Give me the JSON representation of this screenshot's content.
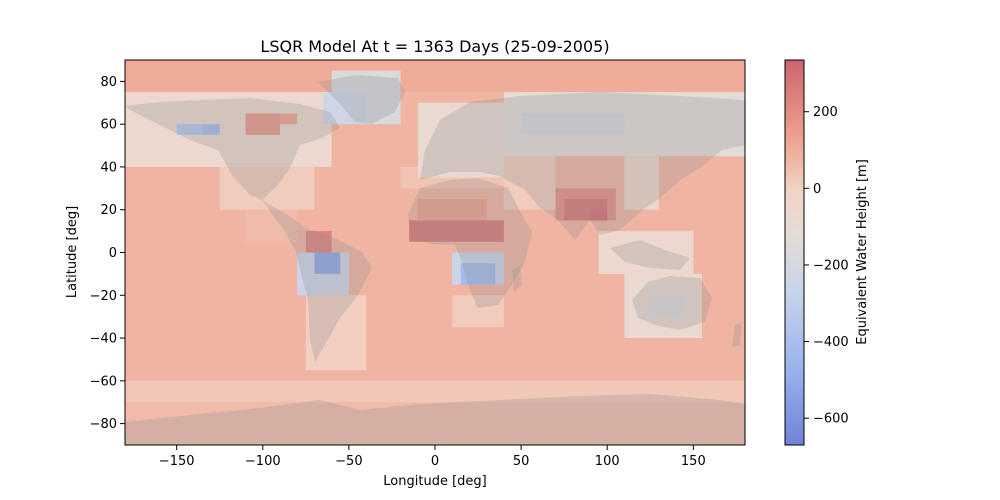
{
  "chart_data": {
    "type": "heatmap",
    "title": "LSQR Model At t = 1363 Days (25-09-2005)",
    "xlabel": "Longitude [deg]",
    "ylabel": "Latitude [deg]",
    "xlim": [
      -180,
      180
    ],
    "ylim": [
      -90,
      90
    ],
    "x_ticks": [
      -150,
      -100,
      -50,
      0,
      50,
      100,
      150
    ],
    "y_ticks": [
      -80,
      -60,
      -40,
      -20,
      0,
      20,
      40,
      60,
      80
    ],
    "x_tick_labels": [
      "−150",
      "−100",
      "−50",
      "0",
      "50",
      "100",
      "150"
    ],
    "y_tick_labels": [
      "−80",
      "−60",
      "−40",
      "−20",
      "0",
      "20",
      "40",
      "60",
      "80"
    ],
    "grid": false,
    "colormap": "coolwarm",
    "colorbar": {
      "label": "Equivalent Water Height [m]",
      "range": [
        -670,
        335
      ],
      "ticks": [
        200,
        0,
        -200,
        -400,
        -600
      ],
      "tick_labels": [
        "200",
        "0",
        "−200",
        "−400",
        "−600"
      ]
    },
    "background_value": 80,
    "cell_size_deg": 5,
    "cells": [
      {
        "lon": [
          -180,
          180
        ],
        "lat": [
          75,
          90
        ],
        "value": 100
      },
      {
        "lon": [
          -180,
          180
        ],
        "lat": [
          -90,
          -70
        ],
        "value": 60
      },
      {
        "lon": [
          -180,
          180
        ],
        "lat": [
          -70,
          -60
        ],
        "value": 30
      },
      {
        "lon": [
          -180,
          -60
        ],
        "lat": [
          40,
          75
        ],
        "value": -60
      },
      {
        "lon": [
          -145,
          -125
        ],
        "lat": [
          55,
          60
        ],
        "value": -420
      },
      {
        "lon": [
          -150,
          -135
        ],
        "lat": [
          55,
          60
        ],
        "value": -350
      },
      {
        "lon": [
          -110,
          -90
        ],
        "lat": [
          55,
          65
        ],
        "value": 160
      },
      {
        "lon": [
          -90,
          -80
        ],
        "lat": [
          60,
          65
        ],
        "value": 120
      },
      {
        "lon": [
          -60,
          -20
        ],
        "lat": [
          60,
          85
        ],
        "value": -180
      },
      {
        "lon": [
          -65,
          -40
        ],
        "lat": [
          60,
          75
        ],
        "value": -240
      },
      {
        "lon": [
          -125,
          -70
        ],
        "lat": [
          20,
          40
        ],
        "value": 20
      },
      {
        "lon": [
          -110,
          -80
        ],
        "lat": [
          5,
          20
        ],
        "value": 60
      },
      {
        "lon": [
          -75,
          -60
        ],
        "lat": [
          0,
          10
        ],
        "value": 230
      },
      {
        "lon": [
          -80,
          -50
        ],
        "lat": [
          -20,
          0
        ],
        "value": -250
      },
      {
        "lon": [
          -70,
          -55
        ],
        "lat": [
          -10,
          0
        ],
        "value": -520
      },
      {
        "lon": [
          -75,
          -40
        ],
        "lat": [
          -55,
          -20
        ],
        "value": 10
      },
      {
        "lon": [
          -20,
          40
        ],
        "lat": [
          30,
          40
        ],
        "value": 40
      },
      {
        "lon": [
          -15,
          40
        ],
        "lat": [
          5,
          15
        ],
        "value": 270
      },
      {
        "lon": [
          -10,
          30
        ],
        "lat": [
          15,
          25
        ],
        "value": 130
      },
      {
        "lon": [
          10,
          40
        ],
        "lat": [
          -15,
          0
        ],
        "value": -260
      },
      {
        "lon": [
          15,
          35
        ],
        "lat": [
          -15,
          -5
        ],
        "value": -430
      },
      {
        "lon": [
          10,
          40
        ],
        "lat": [
          -35,
          -20
        ],
        "value": 20
      },
      {
        "lon": [
          -10,
          40
        ],
        "lat": [
          35,
          70
        ],
        "value": -80
      },
      {
        "lon": [
          40,
          180
        ],
        "lat": [
          45,
          75
        ],
        "value": -130
      },
      {
        "lon": [
          50,
          110
        ],
        "lat": [
          55,
          65
        ],
        "value": -200
      },
      {
        "lon": [
          40,
          70
        ],
        "lat": [
          20,
          45
        ],
        "value": 20
      },
      {
        "lon": [
          70,
          105
        ],
        "lat": [
          15,
          30
        ],
        "value": 190
      },
      {
        "lon": [
          75,
          100
        ],
        "lat": [
          15,
          25
        ],
        "value": 270
      },
      {
        "lon": [
          90,
          100
        ],
        "lat": [
          15,
          20
        ],
        "value": 310
      },
      {
        "lon": [
          110,
          130
        ],
        "lat": [
          20,
          45
        ],
        "value": -40
      },
      {
        "lon": [
          95,
          150
        ],
        "lat": [
          -10,
          10
        ],
        "value": -60
      },
      {
        "lon": [
          110,
          155
        ],
        "lat": [
          -40,
          -10
        ],
        "value": -80
      },
      {
        "lon": [
          125,
          145
        ],
        "lat": [
          -30,
          -20
        ],
        "value": -160
      }
    ]
  }
}
